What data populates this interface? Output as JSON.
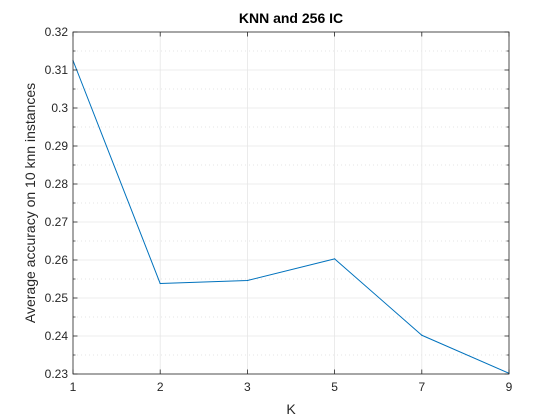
{
  "chart_data": {
    "type": "line",
    "title": "KNN and 256 IC",
    "xlabel": "K",
    "ylabel": "Average accuracy on 10 knn instances",
    "categories": [
      "1",
      "2",
      "3",
      "5",
      "7",
      "9"
    ],
    "series": [
      {
        "name": "",
        "values": [
          0.3125,
          0.2538,
          0.2546,
          0.2603,
          0.2402,
          0.2302
        ]
      }
    ],
    "ylim": [
      0.23,
      0.32
    ],
    "yticks": [
      "0.23",
      "0.24",
      "0.25",
      "0.26",
      "0.27",
      "0.28",
      "0.29",
      "0.3",
      "0.31",
      "0.32"
    ],
    "grid": true,
    "minor_grid": true,
    "line_color": "#0072bd"
  }
}
